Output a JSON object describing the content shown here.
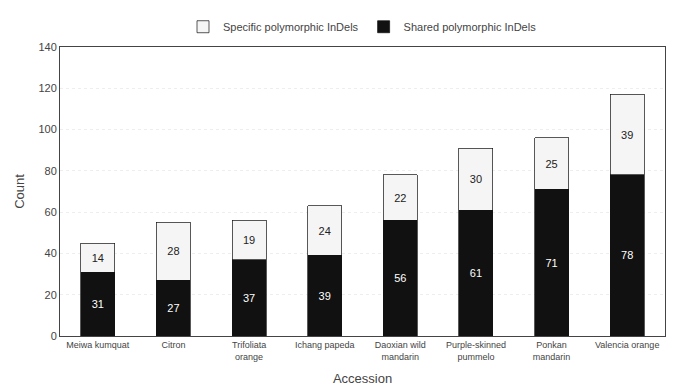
{
  "chart_data": {
    "type": "bar",
    "stacked": true,
    "categories": [
      "Meiwa kumquat",
      "Citron",
      "Trifoliata\norange",
      "Ichang papeda",
      "Daoxian wild\nmandarin",
      "Purple-skinned\npummelo",
      "Ponkan\nmandarin",
      "Valencia orange"
    ],
    "series": [
      {
        "name": "Shared polymorphic InDels",
        "color": "#111111",
        "values": [
          31,
          27,
          37,
          39,
          56,
          61,
          71,
          78
        ]
      },
      {
        "name": "Specific polymorphic InDels",
        "color": "#f5f5f5",
        "values": [
          14,
          28,
          19,
          24,
          22,
          30,
          25,
          39
        ]
      }
    ],
    "xlabel": "Accession",
    "ylabel": "Count",
    "ylim": [
      0,
      140
    ],
    "yticks": [
      0,
      20,
      40,
      60,
      80,
      100,
      120,
      140
    ],
    "grid": true,
    "legend": "top",
    "data_labels": true
  }
}
